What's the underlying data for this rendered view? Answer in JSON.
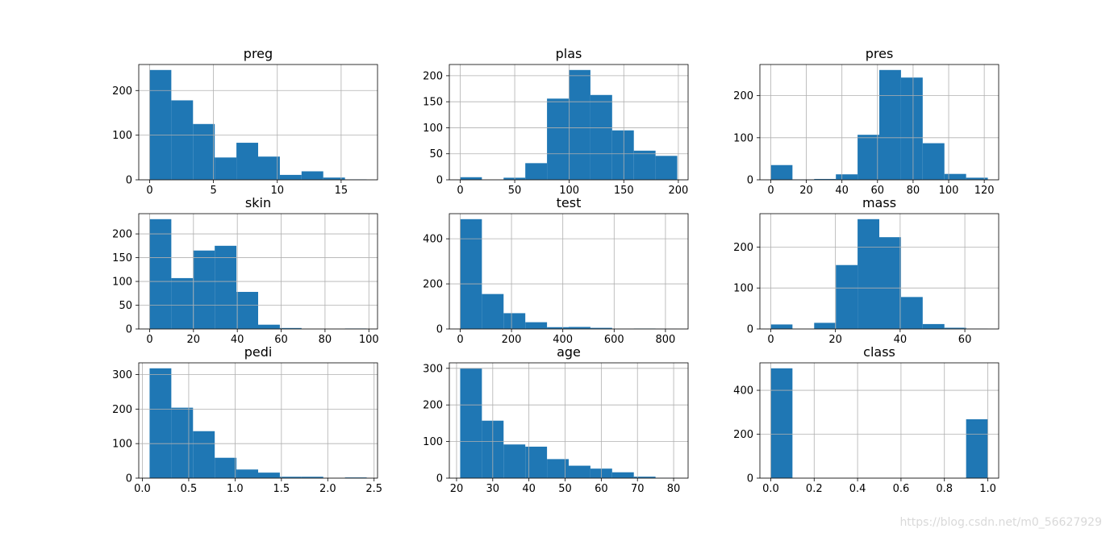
{
  "watermark": "https://blog.csdn.net/m0_56627929",
  "colors": {
    "bar": "#1f77b4",
    "grid": "#b0b0b0",
    "axis": "#000000"
  },
  "chart_data": [
    {
      "type": "bar",
      "title": "preg",
      "bin_edges": [
        0,
        1.7,
        3.4,
        5.1,
        6.8,
        8.5,
        10.2,
        11.9,
        13.6,
        15.3,
        17
      ],
      "values": [
        246,
        178,
        125,
        50,
        83,
        52,
        11,
        19,
        5,
        1
      ],
      "xticks": [
        0,
        5,
        10,
        15
      ],
      "xtick_labels": [
        "0",
        "5",
        "10",
        "15"
      ],
      "yticks": [
        0,
        100,
        200
      ],
      "ytick_labels": [
        "0",
        "100",
        "200"
      ],
      "xlim": [
        -0.85,
        17.85
      ],
      "ylim": [
        0,
        258.3
      ],
      "grid": true
    },
    {
      "type": "bar",
      "title": "plas",
      "bin_edges": [
        0,
        19.9,
        39.8,
        59.7,
        79.6,
        99.5,
        119.4,
        139.3,
        159.2,
        179.1,
        199
      ],
      "values": [
        5,
        0,
        4,
        32,
        156,
        211,
        163,
        95,
        56,
        46
      ],
      "xticks": [
        0,
        50,
        100,
        150,
        200
      ],
      "xtick_labels": [
        "0",
        "50",
        "100",
        "150",
        "200"
      ],
      "yticks": [
        0,
        50,
        100,
        150,
        200
      ],
      "ytick_labels": [
        "0",
        "50",
        "100",
        "150",
        "200"
      ],
      "xlim": [
        -9.95,
        208.95
      ],
      "ylim": [
        0,
        221.55
      ],
      "grid": true
    },
    {
      "type": "bar",
      "title": "pres",
      "bin_edges": [
        0,
        12.2,
        24.4,
        36.6,
        48.8,
        61,
        73.2,
        85.4,
        97.6,
        109.8,
        122
      ],
      "values": [
        35,
        1,
        2,
        13,
        107,
        261,
        243,
        87,
        14,
        5
      ],
      "xticks": [
        0,
        20,
        40,
        60,
        80,
        100,
        120
      ],
      "xtick_labels": [
        "0",
        "20",
        "40",
        "60",
        "80",
        "100",
        "120"
      ],
      "yticks": [
        0,
        100,
        200
      ],
      "ytick_labels": [
        "0",
        "100",
        "200"
      ],
      "xlim": [
        -6.1,
        128.1
      ],
      "ylim": [
        0,
        274.05
      ],
      "grid": true
    },
    {
      "type": "bar",
      "title": "skin",
      "bin_edges": [
        0,
        9.9,
        19.8,
        29.7,
        39.6,
        49.5,
        59.4,
        69.3,
        79.2,
        89.1,
        99
      ],
      "values": [
        231,
        107,
        165,
        175,
        78,
        9,
        2,
        0,
        0,
        1
      ],
      "xticks": [
        0,
        20,
        40,
        60,
        80,
        100
      ],
      "xtick_labels": [
        "0",
        "20",
        "40",
        "60",
        "80",
        "100"
      ],
      "yticks": [
        0,
        50,
        100,
        150,
        200
      ],
      "ytick_labels": [
        "0",
        "50",
        "100",
        "150",
        "200"
      ],
      "xlim": [
        -4.95,
        103.95
      ],
      "ylim": [
        0,
        242.55
      ],
      "grid": true
    },
    {
      "type": "bar",
      "title": "test",
      "bin_edges": [
        0,
        84.6,
        169.2,
        253.8,
        338.4,
        423,
        507.6,
        592.2,
        676.8,
        761.4,
        846
      ],
      "values": [
        487,
        155,
        70,
        30,
        8,
        9,
        5,
        1,
        2,
        1
      ],
      "xticks": [
        0,
        200,
        400,
        600,
        800
      ],
      "xtick_labels": [
        "0",
        "200",
        "400",
        "600",
        "800"
      ],
      "yticks": [
        0,
        200,
        400
      ],
      "ytick_labels": [
        "0",
        "200",
        "400"
      ],
      "xlim": [
        -42.3,
        888.3
      ],
      "ylim": [
        0,
        511.35
      ],
      "grid": true
    },
    {
      "type": "bar",
      "title": "mass",
      "bin_edges": [
        0,
        6.71,
        13.42,
        20.13,
        26.84,
        33.55,
        40.26,
        46.97,
        53.68,
        60.39,
        67.1
      ],
      "values": [
        11,
        0,
        15,
        156,
        268,
        224,
        78,
        12,
        3,
        1
      ],
      "xticks": [
        0,
        20,
        40,
        60
      ],
      "xtick_labels": [
        "0",
        "20",
        "40",
        "60"
      ],
      "yticks": [
        0,
        100,
        200
      ],
      "ytick_labels": [
        "0",
        "100",
        "200"
      ],
      "xlim": [
        -3.355,
        70.455
      ],
      "ylim": [
        0,
        281.4
      ],
      "grid": true
    },
    {
      "type": "bar",
      "title": "pedi",
      "bin_edges": [
        0.078,
        0.3122,
        0.5464,
        0.7806,
        1.0148,
        1.249,
        1.4832,
        1.7174,
        1.9516,
        2.1858,
        2.42
      ],
      "values": [
        318,
        204,
        136,
        59,
        25,
        16,
        4,
        4,
        0,
        2
      ],
      "xticks": [
        0,
        0.5,
        1.0,
        1.5,
        2.0,
        2.5
      ],
      "xtick_labels": [
        "0.0",
        "0.5",
        "1.0",
        "1.5",
        "2.0",
        "2.5"
      ],
      "yticks": [
        0,
        100,
        200,
        300
      ],
      "ytick_labels": [
        "0",
        "100",
        "200",
        "300"
      ],
      "xlim": [
        -0.0391,
        2.5371
      ],
      "ylim": [
        0,
        333.9
      ],
      "grid": true
    },
    {
      "type": "bar",
      "title": "age",
      "bin_edges": [
        21,
        27,
        33,
        39,
        45,
        51,
        57,
        63,
        69,
        75,
        81
      ],
      "values": [
        300,
        157,
        92,
        86,
        52,
        34,
        26,
        16,
        4,
        1
      ],
      "xticks": [
        20,
        30,
        40,
        50,
        60,
        70,
        80
      ],
      "xtick_labels": [
        "20",
        "30",
        "40",
        "50",
        "60",
        "70",
        "80"
      ],
      "yticks": [
        0,
        100,
        200,
        300
      ],
      "ytick_labels": [
        "0",
        "100",
        "200",
        "300"
      ],
      "xlim": [
        18,
        84
      ],
      "ylim": [
        0,
        315
      ],
      "grid": true
    },
    {
      "type": "bar",
      "title": "class",
      "bin_edges": [
        0,
        0.1,
        0.2,
        0.3,
        0.4,
        0.5,
        0.6,
        0.7,
        0.8,
        0.9,
        1.0
      ],
      "values": [
        500,
        0,
        0,
        0,
        0,
        0,
        0,
        0,
        0,
        268
      ],
      "xticks": [
        0,
        0.2,
        0.4,
        0.6,
        0.8,
        1.0
      ],
      "xtick_labels": [
        "0.0",
        "0.2",
        "0.4",
        "0.6",
        "0.8",
        "1.0"
      ],
      "yticks": [
        0,
        200,
        400
      ],
      "ytick_labels": [
        "0",
        "200",
        "400"
      ],
      "xlim": [
        -0.05,
        1.05
      ],
      "ylim": [
        0,
        525
      ],
      "grid": true
    }
  ]
}
